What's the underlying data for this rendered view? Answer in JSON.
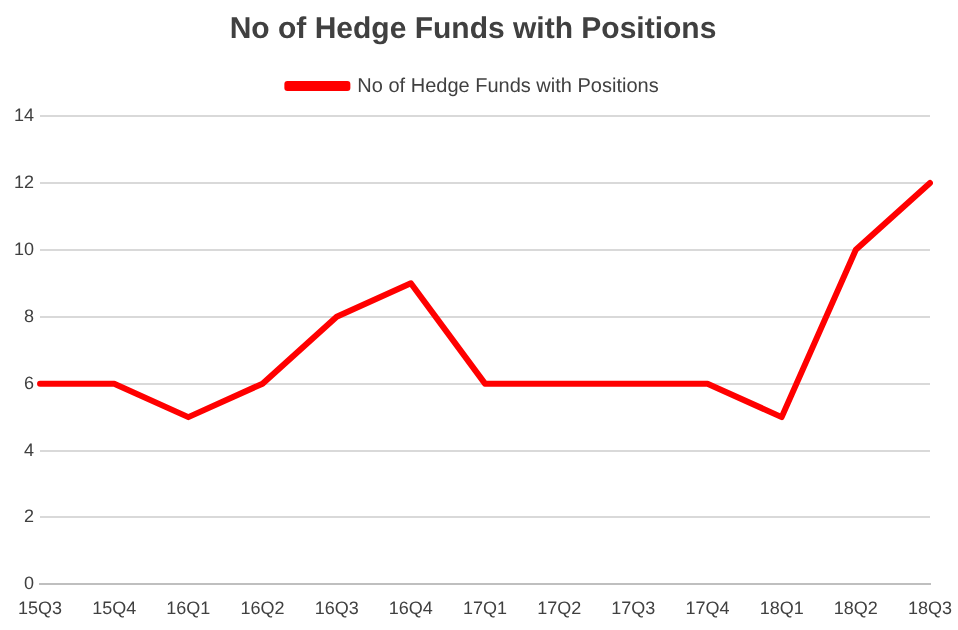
{
  "chart_data": {
    "type": "line",
    "title": "No of Hedge Funds with Positions",
    "categories": [
      "15Q3",
      "15Q4",
      "16Q1",
      "16Q2",
      "16Q3",
      "16Q4",
      "17Q1",
      "17Q2",
      "17Q3",
      "17Q4",
      "18Q1",
      "18Q2",
      "18Q3"
    ],
    "series": [
      {
        "name": "No of Hedge Funds with Positions",
        "color": "#ff0000",
        "values": [
          6,
          6,
          5,
          6,
          8,
          9,
          6,
          6,
          6,
          6,
          5,
          10,
          12
        ]
      }
    ],
    "ylim": [
      0,
      14
    ],
    "yticks": [
      0,
      2,
      4,
      6,
      8,
      10,
      12,
      14
    ],
    "grid": "y",
    "legend": "top",
    "marker": "none",
    "line_style": "solid"
  }
}
